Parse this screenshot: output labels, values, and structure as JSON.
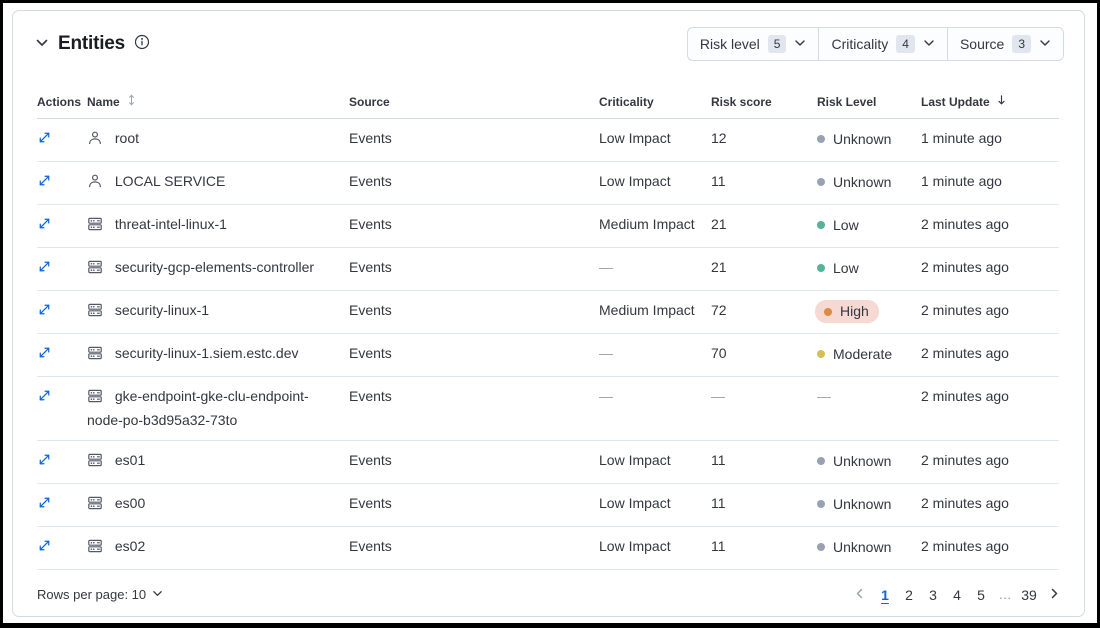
{
  "panel": {
    "title": "Entities"
  },
  "filters": [
    {
      "label": "Risk level",
      "count": "5"
    },
    {
      "label": "Criticality",
      "count": "4"
    },
    {
      "label": "Source",
      "count": "3"
    }
  ],
  "table": {
    "headers": {
      "actions": "Actions",
      "name": "Name",
      "source": "Source",
      "criticality": "Criticality",
      "risk_score": "Risk score",
      "risk_level": "Risk Level",
      "last_update": "Last Update"
    },
    "rows": [
      {
        "entity_type": "user",
        "name": "root",
        "source": "Events",
        "criticality": "Low Impact",
        "risk_score": "12",
        "risk_level": "Unknown",
        "risk_badge": false,
        "last_update": "1 minute ago"
      },
      {
        "entity_type": "user",
        "name": "LOCAL SERVICE",
        "source": "Events",
        "criticality": "Low Impact",
        "risk_score": "11",
        "risk_level": "Unknown",
        "risk_badge": false,
        "last_update": "1 minute ago"
      },
      {
        "entity_type": "host",
        "name": "threat-intel-linux-1",
        "source": "Events",
        "criticality": "Medium Impact",
        "risk_score": "21",
        "risk_level": "Low",
        "risk_badge": false,
        "last_update": "2 minutes ago"
      },
      {
        "entity_type": "host",
        "name": "security-gcp-elements-controller",
        "source": "Events",
        "criticality": "—",
        "risk_score": "21",
        "risk_level": "Low",
        "risk_badge": false,
        "last_update": "2 minutes ago"
      },
      {
        "entity_type": "host",
        "name": "security-linux-1",
        "source": "Events",
        "criticality": "Medium Impact",
        "risk_score": "72",
        "risk_level": "High",
        "risk_badge": true,
        "last_update": "2 minutes ago"
      },
      {
        "entity_type": "host",
        "name": "security-linux-1.siem.estc.dev",
        "source": "Events",
        "criticality": "—",
        "risk_score": "70",
        "risk_level": "Moderate",
        "risk_badge": false,
        "last_update": "2 minutes ago"
      },
      {
        "entity_type": "host",
        "name": "gke-endpoint-gke-clu-endpoint-node-po-b3d95a32-73to",
        "source": "Events",
        "criticality": "—",
        "risk_score": "—",
        "risk_level": "—",
        "risk_badge": false,
        "last_update": "2 minutes ago"
      },
      {
        "entity_type": "host",
        "name": "es01",
        "source": "Events",
        "criticality": "Low Impact",
        "risk_score": "11",
        "risk_level": "Unknown",
        "risk_badge": false,
        "last_update": "2 minutes ago"
      },
      {
        "entity_type": "host",
        "name": "es00",
        "source": "Events",
        "criticality": "Low Impact",
        "risk_score": "11",
        "risk_level": "Unknown",
        "risk_badge": false,
        "last_update": "2 minutes ago"
      },
      {
        "entity_type": "host",
        "name": "es02",
        "source": "Events",
        "criticality": "Low Impact",
        "risk_score": "11",
        "risk_level": "Unknown",
        "risk_badge": false,
        "last_update": "2 minutes ago"
      }
    ]
  },
  "footer": {
    "rows_per_page": "Rows per page: 10",
    "pagination": {
      "pages": [
        {
          "label": "1",
          "current": true
        },
        {
          "label": "2",
          "current": false
        },
        {
          "label": "3",
          "current": false
        },
        {
          "label": "4",
          "current": false
        },
        {
          "label": "5",
          "current": false
        },
        {
          "label": "...",
          "current": false
        },
        {
          "label": "39",
          "current": false
        }
      ]
    }
  },
  "colors": {
    "accent_blue": "#0b64dd",
    "high_badge_bg": "#f6d9d2",
    "risk_colors": {
      "Unknown": "#98a2b3",
      "Low": "#54b399",
      "Moderate": "#d6bf57",
      "High": "#da8b45"
    }
  }
}
